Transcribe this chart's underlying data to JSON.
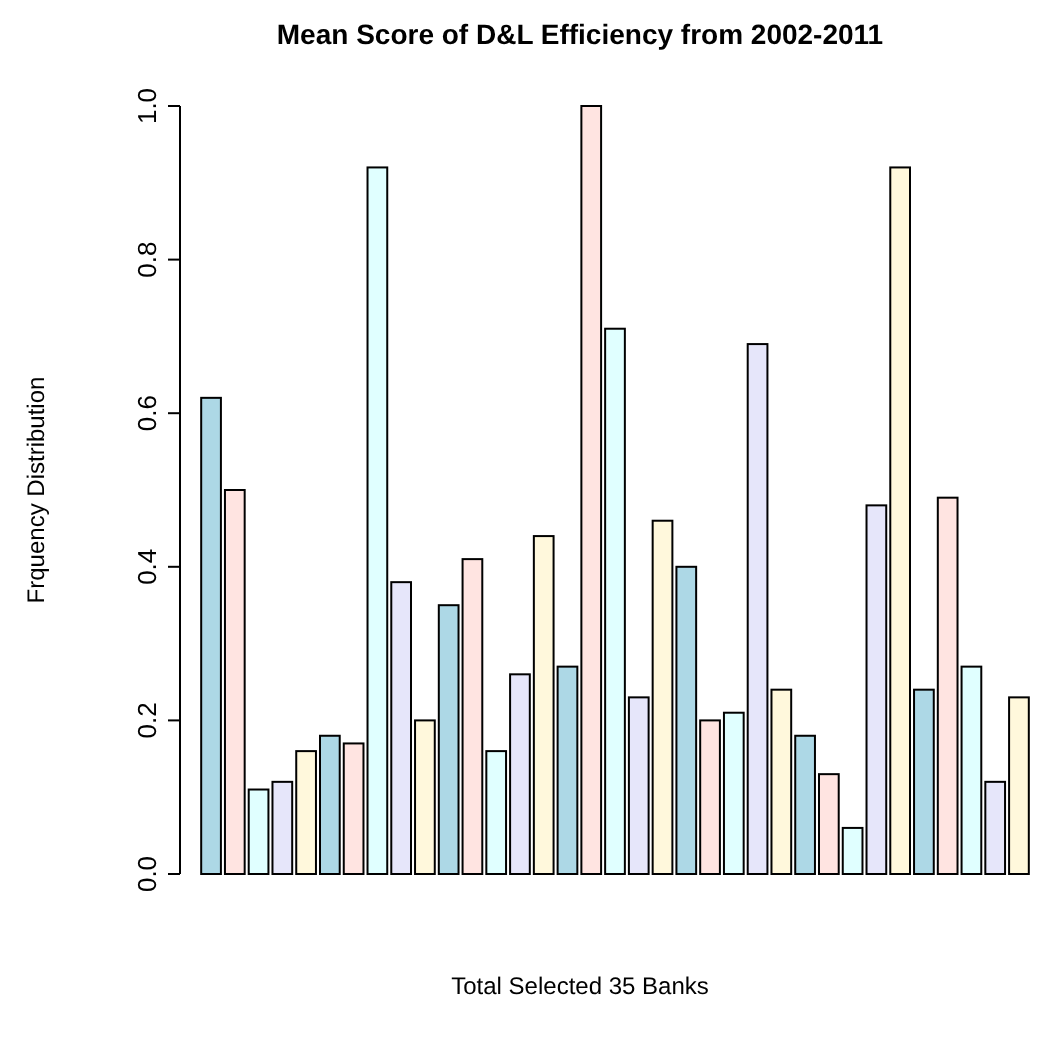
{
  "chart_data": {
    "type": "bar",
    "title": "Mean Score of D&L Efficiency from 2002-2011",
    "xlabel": "Total Selected 35 Banks",
    "ylabel": "Frquency Distribution",
    "categories": [
      null,
      null,
      null,
      null,
      null,
      null,
      null,
      null,
      null,
      null,
      null,
      null,
      null,
      null,
      null,
      null,
      null,
      null,
      null,
      null,
      null,
      null,
      null,
      null,
      null,
      null,
      null,
      null,
      null,
      null,
      null,
      null,
      null,
      null,
      null
    ],
    "values": [
      0.62,
      0.5,
      0.11,
      0.12,
      0.16,
      0.18,
      0.17,
      0.92,
      0.38,
      0.2,
      0.35,
      0.41,
      0.16,
      0.26,
      0.44,
      0.27,
      1.0,
      0.71,
      0.23,
      0.46,
      0.4,
      0.2,
      0.21,
      0.69,
      0.24,
      0.18,
      0.13,
      0.06,
      0.48,
      0.92,
      0.24,
      0.49,
      0.27,
      0.12,
      0.23
    ],
    "colors": [
      "#add8e6",
      "#ffe4e1",
      "#e0ffff",
      "#e6e6fa",
      "#fff8dc",
      "#add8e6",
      "#ffe4e1",
      "#e0ffff",
      "#e6e6fa",
      "#fff8dc",
      "#add8e6",
      "#ffe4e1",
      "#e0ffff",
      "#e6e6fa",
      "#fff8dc",
      "#add8e6",
      "#ffe4e1",
      "#e0ffff",
      "#e6e6fa",
      "#fff8dc",
      "#add8e6",
      "#ffe4e1",
      "#e0ffff",
      "#e6e6fa",
      "#fff8dc",
      "#add8e6",
      "#ffe4e1",
      "#e0ffff",
      "#e6e6fa",
      "#fff8dc",
      "#add8e6",
      "#ffe4e1",
      "#e0ffff",
      "#e6e6fa",
      "#fff8dc"
    ],
    "ylim": [
      0,
      1
    ],
    "yticks": [
      {
        "value": 0,
        "label": "0.0"
      },
      {
        "value": 0.2,
        "label": "0.2"
      },
      {
        "value": 0.4,
        "label": "0.4"
      },
      {
        "value": 0.6,
        "label": "0.6"
      },
      {
        "value": 0.8,
        "label": "0.8"
      },
      {
        "value": 1,
        "label": "1.0"
      }
    ],
    "tick_labels": "y",
    "grid": false
  }
}
